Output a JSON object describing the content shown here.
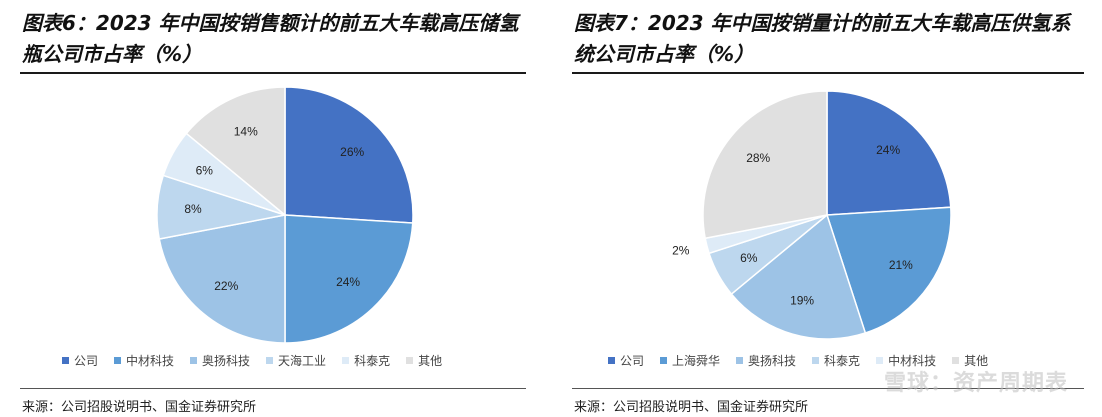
{
  "panels": [
    {
      "title": "图表6：2023 年中国按销售额计的前五大车载高压储氢瓶公司市占率（%）",
      "source": "来源：公司招股说明书、国金证券研究所",
      "chart_data": {
        "type": "pie",
        "title": "图表6：2023 年中国按销售额计的前五大车载高压储氢瓶公司市占率（%）",
        "categories": [
          "公司",
          "中材科技",
          "奥扬科技",
          "天海工业",
          "科泰克",
          "其他"
        ],
        "values": [
          26,
          24,
          22,
          8,
          6,
          14
        ],
        "labels": [
          "26%",
          "24%",
          "22%",
          "8%",
          "6%",
          "14%"
        ],
        "colors": [
          "#4472C4",
          "#5B9BD5",
          "#9DC3E6",
          "#BDD7EE",
          "#DEEBF7",
          "#E0E0E0"
        ],
        "legend_position": "bottom"
      }
    },
    {
      "title": "图表7：2023 年中国按销量计的前五大车载高压供氢系统公司市占率（%）",
      "source": "来源：公司招股说明书、国金证券研究所",
      "chart_data": {
        "type": "pie",
        "title": "图表7：2023 年中国按销量计的前五大车载高压供氢系统公司市占率（%）",
        "categories": [
          "公司",
          "上海舜华",
          "奥扬科技",
          "科泰克",
          "中材科技",
          "其他"
        ],
        "values": [
          24,
          21,
          19,
          6,
          2,
          28
        ],
        "labels": [
          "24%",
          "21%",
          "19%",
          "6%",
          "2%",
          "28%"
        ],
        "colors": [
          "#4472C4",
          "#5B9BD5",
          "#9DC3E6",
          "#BDD7EE",
          "#DEEBF7",
          "#E0E0E0"
        ],
        "legend_position": "bottom"
      }
    }
  ],
  "watermark": "雪球：资产周期表"
}
